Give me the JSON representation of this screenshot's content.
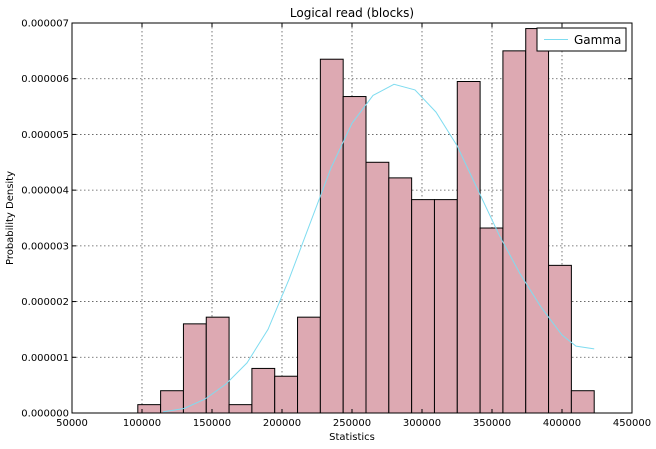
{
  "chart_data": {
    "type": "bar",
    "title": "Logical read (blocks)",
    "xlabel": "Statistics",
    "ylabel": "Probability Density",
    "xlim": [
      50000,
      450000
    ],
    "ylim": [
      0,
      7e-06
    ],
    "xticks": [
      50000,
      100000,
      150000,
      200000,
      250000,
      300000,
      350000,
      400000,
      450000
    ],
    "xtick_labels": [
      "50000",
      "100000",
      "150000",
      "200000",
      "250000",
      "300000",
      "350000",
      "400000",
      "450000"
    ],
    "yticks": [
      0,
      1e-06,
      2e-06,
      3e-06,
      4e-06,
      5e-06,
      6e-06,
      7e-06
    ],
    "ytick_labels": [
      "0.000000",
      "0.000001",
      "0.000002",
      "0.000003",
      "0.000004",
      "0.000005",
      "0.000006",
      "0.000007"
    ],
    "grid": true,
    "bar_color": "#dda9b2",
    "bins": {
      "edges": [
        97000,
        113300,
        129600,
        145900,
        162200,
        178500,
        194800,
        211100,
        227400,
        243700,
        260000,
        276300,
        292600,
        308900,
        325200,
        341500,
        357800,
        374100,
        390400,
        406700,
        423000
      ],
      "density": [
        1.5e-07,
        4e-07,
        1.6e-06,
        1.72e-06,
        1.5e-07,
        8e-07,
        6.6e-07,
        1.72e-06,
        6.35e-06,
        5.68e-06,
        4.5e-06,
        4.22e-06,
        3.83e-06,
        3.83e-06,
        5.95e-06,
        3.32e-06,
        6.5e-06,
        6.9e-06,
        2.65e-06,
        4e-07
      ]
    },
    "series": [
      {
        "name": "Gamma",
        "type": "line",
        "color": "#7fdcf0",
        "x": [
          115000,
          130000,
          145000,
          160000,
          175000,
          190000,
          205000,
          220000,
          235000,
          250000,
          265000,
          280000,
          295000,
          310000,
          325000,
          340000,
          355000,
          370000,
          385000,
          400000,
          410000,
          423000
        ],
        "y": [
          2e-08,
          8e-08,
          2.5e-07,
          5.2e-07,
          9e-07,
          1.5e-06,
          2.4e-06,
          3.4e-06,
          4.4e-06,
          5.2e-06,
          5.7e-06,
          5.9e-06,
          5.8e-06,
          5.4e-06,
          4.8e-06,
          4e-06,
          3.2e-06,
          2.5e-06,
          1.9e-06,
          1.4e-06,
          1.2e-06,
          1.15e-06
        ]
      }
    ],
    "legend": {
      "position": "top-right"
    }
  }
}
